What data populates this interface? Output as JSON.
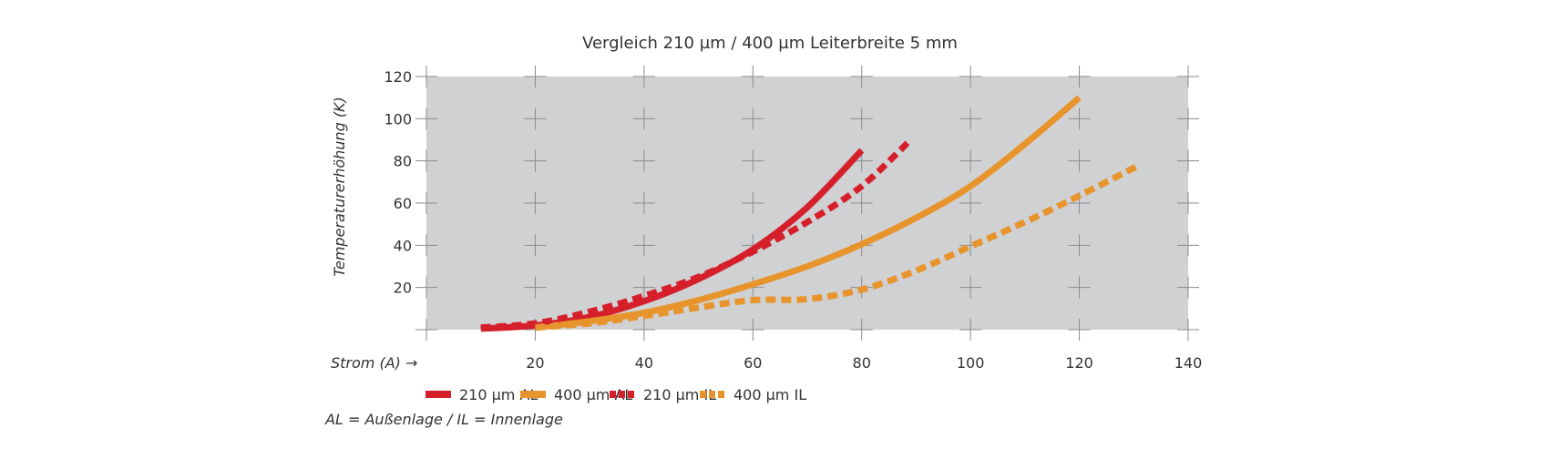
{
  "chart_data": {
    "type": "line",
    "title": "Vergleich 210 µm / 400 µm Leiterbreite 5 mm",
    "xlabel": "Strom (A) →",
    "ylabel": "Temperaturerhöhung (K)",
    "xlim": [
      0,
      140
    ],
    "ylim": [
      0,
      120
    ],
    "xticks": [
      "20",
      "40",
      "60",
      "80",
      "100",
      "120",
      "140"
    ],
    "yticks": [
      "20",
      "40",
      "60",
      "80",
      "100",
      "120"
    ],
    "grid": "cross-markers",
    "legend_position": "bottom",
    "footnote": "AL = Außenlage / IL = Innenlage",
    "background_color": "#d0d1d3",
    "series": [
      {
        "name": "210 µm AL",
        "color": "#d51f2b",
        "style": "solid",
        "x": [
          10,
          20,
          30,
          40,
          50,
          60,
          70,
          80
        ],
        "y": [
          0.5,
          2,
          6,
          13.5,
          24,
          38,
          58,
          85
        ]
      },
      {
        "name": "400 µm AL",
        "color": "#e8942d",
        "style": "solid",
        "x": [
          20,
          30,
          40,
          50,
          60,
          70,
          80,
          90,
          100,
          110,
          120
        ],
        "y": [
          1,
          4,
          8,
          14,
          21.5,
          30,
          40.5,
          53,
          68,
          88,
          110
        ]
      },
      {
        "name": "210 µm IL",
        "color": "#d51f2b",
        "style": "dashed",
        "x": [
          10,
          20,
          30,
          40,
          50,
          60,
          70,
          80,
          89
        ],
        "y": [
          1,
          3,
          8.5,
          16,
          25,
          37,
          51,
          68,
          90
        ]
      },
      {
        "name": "400 µm IL",
        "color": "#e8942d",
        "style": "dashed",
        "x": [
          20,
          30,
          40,
          50,
          60,
          70,
          80,
          90,
          100,
          110,
          120,
          131
        ],
        "y": [
          1,
          3,
          6.5,
          10.5,
          14,
          14.5,
          19,
          28,
          39.5,
          51,
          63.5,
          78
        ]
      }
    ]
  }
}
